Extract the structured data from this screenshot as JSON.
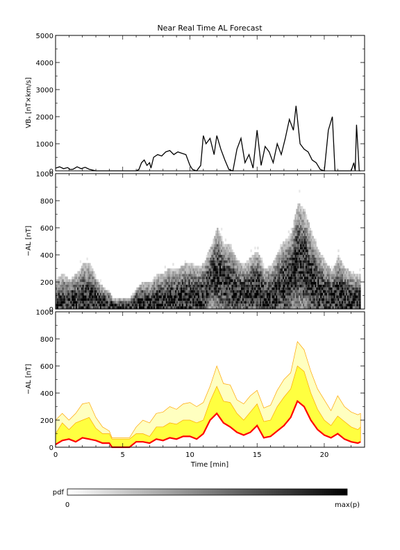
{
  "title": "Near Real Time AL Forecast",
  "colors": {
    "heat_dark": "#000000",
    "band_outer": "#ffffc0",
    "band_mid": "#ffff40",
    "band_edge": "#ffa500",
    "median_line": "#ff0000"
  },
  "chart_data": [
    {
      "type": "line",
      "ylabel": "VBₛ [nT×km/s]",
      "ylim": [
        0,
        5000
      ],
      "yticks": [
        "0",
        "1000",
        "2000",
        "3000",
        "4000",
        "5000"
      ],
      "xlim": [
        0,
        23
      ],
      "x": [
        0,
        0.3,
        0.6,
        0.9,
        1.1,
        1.3,
        1.6,
        1.9,
        2.2,
        2.5,
        3.0,
        4.0,
        5.0,
        5.5,
        6.0,
        6.2,
        6.4,
        6.6,
        6.8,
        7.0,
        7.1,
        7.3,
        7.6,
        7.9,
        8.2,
        8.5,
        8.8,
        9.1,
        9.4,
        9.7,
        10.0,
        10.2,
        10.5,
        10.8,
        11.0,
        11.2,
        11.5,
        11.8,
        12.0,
        12.3,
        12.6,
        12.9,
        13.2,
        13.5,
        13.8,
        14.1,
        14.4,
        14.7,
        15.0,
        15.3,
        15.6,
        15.9,
        16.2,
        16.5,
        16.8,
        17.1,
        17.4,
        17.7,
        17.9,
        18.2,
        18.5,
        18.8,
        19.1,
        19.4,
        19.7,
        20.0,
        20.3,
        20.6,
        20.8,
        21.0,
        21.5,
        22.0,
        22.2,
        22.3,
        22.4,
        22.6,
        22.7
      ],
      "y": [
        100,
        150,
        80,
        120,
        50,
        60,
        150,
        80,
        130,
        60,
        0,
        0,
        0,
        0,
        0,
        50,
        300,
        400,
        200,
        300,
        100,
        500,
        600,
        550,
        700,
        750,
        600,
        700,
        650,
        600,
        200,
        50,
        0,
        200,
        1300,
        1000,
        1200,
        600,
        1300,
        800,
        400,
        50,
        0,
        800,
        1200,
        300,
        600,
        100,
        1500,
        200,
        900,
        700,
        300,
        1000,
        600,
        1200,
        1900,
        1500,
        2400,
        1000,
        800,
        700,
        400,
        300,
        50,
        0,
        1500,
        2000,
        0,
        0,
        0,
        0,
        300,
        0,
        1700,
        0,
        0
      ]
    },
    {
      "type": "heatmap",
      "ylabel": "−AL [nT]",
      "ylim": [
        0,
        1000
      ],
      "yticks": [
        "0",
        "200",
        "400",
        "600",
        "800",
        "1000"
      ],
      "xlim": [
        0,
        23
      ],
      "colorbar_label": "pdf",
      "colorbar_min": "0",
      "colorbar_max": "max(p)"
    },
    {
      "type": "area",
      "ylabel": "−AL [nT]",
      "xlabel": "Time [min]",
      "ylim": [
        0,
        1000
      ],
      "yticks": [
        "0",
        "200",
        "400",
        "600",
        "800",
        "1000"
      ],
      "xlim": [
        0,
        23
      ],
      "xticks": [
        "0",
        "5",
        "10",
        "15",
        "20"
      ],
      "x": [
        0,
        0.5,
        1.0,
        1.5,
        2.0,
        2.5,
        3.0,
        3.5,
        4.0,
        4.2,
        5.0,
        5.5,
        6.0,
        6.5,
        7.0,
        7.5,
        8.0,
        8.5,
        9.0,
        9.5,
        10.0,
        10.5,
        11.0,
        11.5,
        12.0,
        12.5,
        13.0,
        13.5,
        14.0,
        14.5,
        15.0,
        15.5,
        16.0,
        16.5,
        17.0,
        17.5,
        18.0,
        18.5,
        19.0,
        19.5,
        20.0,
        20.5,
        21.0,
        21.5,
        22.0,
        22.5,
        22.7
      ],
      "median": [
        20,
        50,
        60,
        40,
        70,
        60,
        50,
        30,
        30,
        0,
        0,
        0,
        40,
        40,
        30,
        60,
        50,
        70,
        60,
        80,
        80,
        60,
        100,
        200,
        250,
        180,
        150,
        110,
        90,
        110,
        160,
        70,
        80,
        120,
        160,
        220,
        340,
        300,
        200,
        130,
        90,
        70,
        100,
        60,
        40,
        30,
        40
      ],
      "p_mid_upper": [
        100,
        180,
        130,
        180,
        200,
        220,
        140,
        100,
        100,
        60,
        60,
        60,
        100,
        100,
        80,
        150,
        150,
        180,
        170,
        200,
        200,
        180,
        200,
        340,
        450,
        340,
        330,
        250,
        200,
        260,
        320,
        190,
        200,
        300,
        370,
        430,
        600,
        560,
        400,
        280,
        200,
        160,
        230,
        190,
        150,
        130,
        150
      ],
      "p_outer_upper": [
        200,
        250,
        200,
        250,
        320,
        330,
        220,
        150,
        120,
        70,
        70,
        70,
        150,
        200,
        180,
        250,
        260,
        300,
        280,
        320,
        330,
        300,
        330,
        450,
        600,
        470,
        460,
        350,
        320,
        380,
        420,
        290,
        310,
        420,
        500,
        550,
        780,
        720,
        560,
        430,
        350,
        270,
        380,
        300,
        260,
        240,
        250
      ]
    }
  ]
}
